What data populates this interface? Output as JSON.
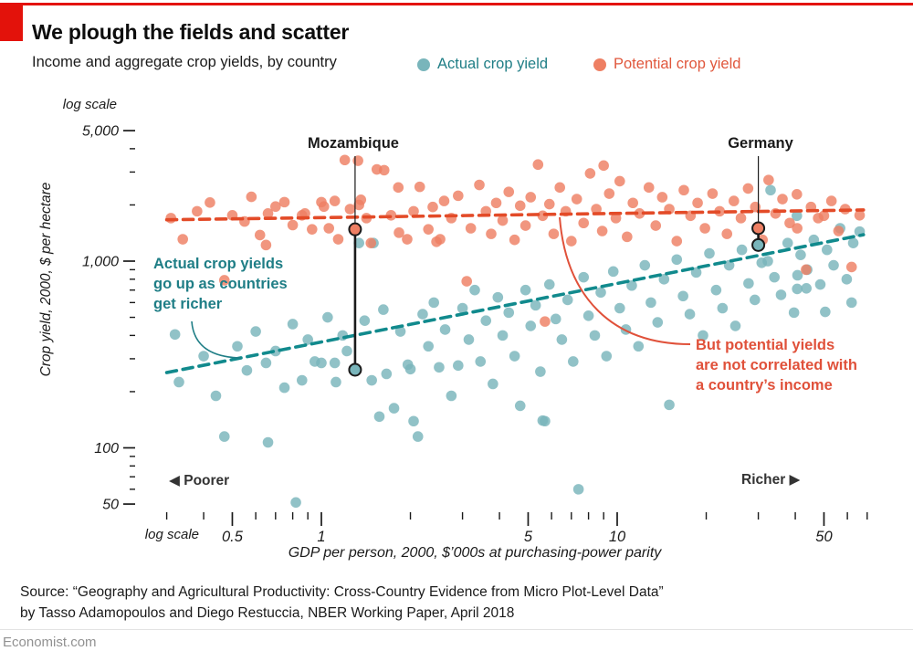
{
  "header": {
    "title": "We plough the fields and scatter",
    "subtitle": "Income and aggregate crop yields, by country"
  },
  "legend": {
    "items": [
      {
        "label": "Actual crop yield",
        "color": "#79b5bb",
        "text_color": "#1f7e86"
      },
      {
        "label": "Potential crop yield",
        "color": "#ee7f63",
        "text_color": "#e0573c"
      }
    ]
  },
  "source": {
    "line1": "Source: “Geography and Agricultural Productivity: Cross-Country Evidence from Micro Plot-Level Data”",
    "line2": "by Tasso Adamopoulos and Diego Restuccia, NBER Working Paper, April 2018"
  },
  "footer": {
    "brand": "Economist.com"
  },
  "brand_color": "#e3120b",
  "chart_data": {
    "type": "scatter",
    "title": "We plough the fields and scatter",
    "subtitle": "Income and aggregate crop yields, by country",
    "xlabel": "GDP per person, 2000, $’000s at purchasing-power parity",
    "ylabel": "Crop yield, 2000, $ per hectare",
    "x_scale": "log",
    "y_scale": "log",
    "xlim": [
      0.28,
      75
    ],
    "ylim": [
      45,
      5500
    ],
    "log_scale_label": "log scale",
    "direction_labels": {
      "left": "◀ Poorer",
      "right": "Richer ▶"
    },
    "x_ticks": [
      {
        "v": 0.5,
        "label": "0.5"
      },
      {
        "v": 1,
        "label": "1"
      },
      {
        "v": 5,
        "label": "5"
      },
      {
        "v": 10,
        "label": "10"
      },
      {
        "v": 50,
        "label": "50"
      }
    ],
    "x_minor_ticks": [
      0.3,
      0.4,
      0.6,
      0.7,
      0.8,
      0.9,
      2,
      3,
      4,
      6,
      7,
      8,
      9,
      20,
      30,
      40,
      60,
      70
    ],
    "y_ticks": [
      {
        "v": 5000,
        "label": "5,000"
      },
      {
        "v": 1000,
        "label": "1,000"
      },
      {
        "v": 100,
        "label": "100"
      },
      {
        "v": 50,
        "label": "50"
      }
    ],
    "y_minor_ticks": [
      4000,
      3000,
      2000,
      900,
      800,
      700,
      600,
      500,
      400,
      300,
      200,
      90,
      80,
      70,
      60
    ],
    "series": [
      {
        "name": "Actual crop yield",
        "color": "#79b5bb",
        "points": [
          [
            0.32,
            405
          ],
          [
            0.33,
            225
          ],
          [
            0.4,
            310
          ],
          [
            0.44,
            190
          ],
          [
            0.47,
            115
          ],
          [
            0.52,
            350
          ],
          [
            0.56,
            260
          ],
          [
            0.6,
            420
          ],
          [
            0.65,
            285
          ],
          [
            0.66,
            107
          ],
          [
            0.7,
            330
          ],
          [
            0.75,
            210
          ],
          [
            0.8,
            460
          ],
          [
            0.82,
            51
          ],
          [
            0.86,
            230
          ],
          [
            0.9,
            380
          ],
          [
            0.95,
            290
          ],
          [
            1.0,
            285
          ],
          [
            1.05,
            500
          ],
          [
            1.11,
            285
          ],
          [
            1.12,
            225
          ],
          [
            1.18,
            400
          ],
          [
            1.22,
            330
          ],
          [
            1.34,
            1250
          ],
          [
            1.4,
            480
          ],
          [
            1.48,
            230
          ],
          [
            1.5,
            1250
          ],
          [
            1.57,
            147
          ],
          [
            1.62,
            550
          ],
          [
            1.66,
            249
          ],
          [
            1.76,
            163
          ],
          [
            1.85,
            420
          ],
          [
            1.96,
            279
          ],
          [
            2.0,
            264
          ],
          [
            2.05,
            139
          ],
          [
            2.12,
            115
          ],
          [
            2.2,
            520
          ],
          [
            2.3,
            350
          ],
          [
            2.4,
            600
          ],
          [
            2.5,
            270
          ],
          [
            2.62,
            430
          ],
          [
            2.75,
            190
          ],
          [
            2.9,
            276
          ],
          [
            3.0,
            560
          ],
          [
            3.15,
            380
          ],
          [
            3.3,
            700
          ],
          [
            3.45,
            290
          ],
          [
            3.6,
            480
          ],
          [
            3.8,
            220
          ],
          [
            3.95,
            640
          ],
          [
            4.1,
            400
          ],
          [
            4.3,
            530
          ],
          [
            4.5,
            310
          ],
          [
            4.7,
            168
          ],
          [
            4.9,
            700
          ],
          [
            5.1,
            450
          ],
          [
            5.3,
            580
          ],
          [
            5.5,
            256
          ],
          [
            5.6,
            140
          ],
          [
            5.7,
            139
          ],
          [
            5.9,
            750
          ],
          [
            6.2,
            490
          ],
          [
            6.5,
            380
          ],
          [
            6.8,
            620
          ],
          [
            7.1,
            290
          ],
          [
            7.4,
            60
          ],
          [
            7.7,
            820
          ],
          [
            8.0,
            510
          ],
          [
            8.4,
            400
          ],
          [
            8.8,
            680
          ],
          [
            9.2,
            310
          ],
          [
            9.7,
            880
          ],
          [
            10.2,
            560
          ],
          [
            10.7,
            430
          ],
          [
            11.2,
            740
          ],
          [
            11.8,
            350
          ],
          [
            12.4,
            950
          ],
          [
            13.0,
            600
          ],
          [
            13.7,
            470
          ],
          [
            14.4,
            800
          ],
          [
            15.0,
            170
          ],
          [
            15.9,
            1020
          ],
          [
            16.7,
            650
          ],
          [
            17.6,
            520
          ],
          [
            18.5,
            870
          ],
          [
            19.5,
            400
          ],
          [
            20.5,
            1100
          ],
          [
            21.6,
            700
          ],
          [
            22.7,
            560
          ],
          [
            23.9,
            950
          ],
          [
            25.1,
            450
          ],
          [
            26.4,
            1150
          ],
          [
            27.8,
            760
          ],
          [
            29.2,
            620
          ],
          [
            30.8,
            980
          ],
          [
            32.3,
            1000
          ],
          [
            33.0,
            2400
          ],
          [
            34.0,
            820
          ],
          [
            35.8,
            660
          ],
          [
            37.7,
            1250
          ],
          [
            39.6,
            530
          ],
          [
            40.5,
            1750
          ],
          [
            40.6,
            710
          ],
          [
            40.7,
            840
          ],
          [
            41.7,
            1080
          ],
          [
            43.6,
            715
          ],
          [
            43.9,
            900
          ],
          [
            46.2,
            1300
          ],
          [
            48.6,
            750
          ],
          [
            50.5,
            535
          ],
          [
            51.2,
            1150
          ],
          [
            53.9,
            950
          ],
          [
            56.7,
            1500
          ],
          [
            59.7,
            800
          ],
          [
            62.0,
            600
          ],
          [
            62.8,
            1250
          ],
          [
            66.0,
            1440
          ]
        ]
      },
      {
        "name": "Potential crop yield",
        "color": "#ee7f63",
        "points": [
          [
            0.31,
            1700
          ],
          [
            0.34,
            1310
          ],
          [
            0.38,
            1850
          ],
          [
            0.42,
            2060
          ],
          [
            0.47,
            790
          ],
          [
            0.5,
            1760
          ],
          [
            0.55,
            1630
          ],
          [
            0.58,
            2210
          ],
          [
            0.62,
            1380
          ],
          [
            0.65,
            1220
          ],
          [
            0.66,
            1800
          ],
          [
            0.7,
            1960
          ],
          [
            0.75,
            2070
          ],
          [
            0.8,
            1560
          ],
          [
            0.86,
            1760
          ],
          [
            0.88,
            1800
          ],
          [
            0.93,
            1480
          ],
          [
            1.0,
            2070
          ],
          [
            1.02,
            1960
          ],
          [
            1.06,
            1500
          ],
          [
            1.11,
            2100
          ],
          [
            1.14,
            1310
          ],
          [
            1.2,
            3480
          ],
          [
            1.25,
            1900
          ],
          [
            1.33,
            3450
          ],
          [
            1.34,
            2000
          ],
          [
            1.36,
            2130
          ],
          [
            1.42,
            1700
          ],
          [
            1.47,
            1250
          ],
          [
            1.54,
            3100
          ],
          [
            1.63,
            3070
          ],
          [
            1.72,
            1760
          ],
          [
            1.82,
            2480
          ],
          [
            1.83,
            1420
          ],
          [
            1.95,
            1310
          ],
          [
            2.05,
            1850
          ],
          [
            2.15,
            2500
          ],
          [
            2.3,
            1480
          ],
          [
            2.38,
            1950
          ],
          [
            2.45,
            1270
          ],
          [
            2.52,
            1310
          ],
          [
            2.6,
            2100
          ],
          [
            2.75,
            1700
          ],
          [
            2.9,
            2240
          ],
          [
            3.1,
            780
          ],
          [
            3.2,
            1500
          ],
          [
            3.42,
            2560
          ],
          [
            3.6,
            1850
          ],
          [
            3.75,
            1400
          ],
          [
            3.9,
            2050
          ],
          [
            4.1,
            1650
          ],
          [
            4.3,
            2350
          ],
          [
            4.5,
            1300
          ],
          [
            4.7,
            1980
          ],
          [
            4.9,
            1550
          ],
          [
            5.1,
            2200
          ],
          [
            5.4,
            3290
          ],
          [
            5.6,
            1750
          ],
          [
            5.7,
            475
          ],
          [
            5.9,
            2020
          ],
          [
            6.1,
            1400
          ],
          [
            6.4,
            2480
          ],
          [
            6.7,
            1850
          ],
          [
            7.0,
            1280
          ],
          [
            7.3,
            2150
          ],
          [
            7.7,
            1600
          ],
          [
            8.1,
            2950
          ],
          [
            8.5,
            1900
          ],
          [
            8.9,
            1450
          ],
          [
            9.0,
            3250
          ],
          [
            9.4,
            2300
          ],
          [
            9.9,
            1700
          ],
          [
            10.2,
            2680
          ],
          [
            10.8,
            1350
          ],
          [
            11.3,
            2050
          ],
          [
            11.9,
            1800
          ],
          [
            12.8,
            2480
          ],
          [
            13.5,
            1550
          ],
          [
            14.2,
            2200
          ],
          [
            15.0,
            1900
          ],
          [
            15.9,
            1280
          ],
          [
            16.8,
            2400
          ],
          [
            17.7,
            1750
          ],
          [
            18.7,
            2050
          ],
          [
            19.8,
            1500
          ],
          [
            21.0,
            2300
          ],
          [
            22.2,
            1850
          ],
          [
            23.5,
            1400
          ],
          [
            24.8,
            2100
          ],
          [
            26.2,
            1700
          ],
          [
            27.7,
            2450
          ],
          [
            29.3,
            1950
          ],
          [
            31.0,
            1300
          ],
          [
            32.5,
            2720
          ],
          [
            34.3,
            1800
          ],
          [
            36.2,
            2150
          ],
          [
            38.3,
            1600
          ],
          [
            40.5,
            2280
          ],
          [
            40.6,
            1500
          ],
          [
            43.5,
            900
          ],
          [
            45.2,
            1950
          ],
          [
            47.8,
            1700
          ],
          [
            50.0,
            1750
          ],
          [
            53.0,
            2100
          ],
          [
            56.0,
            1450
          ],
          [
            59.0,
            1900
          ],
          [
            62.0,
            930
          ],
          [
            66.0,
            1760
          ]
        ]
      }
    ],
    "trend_lines": [
      {
        "series": "Actual crop yield",
        "color": "#118a8d",
        "from": [
          0.3,
          253
        ],
        "to": [
          68,
          1385
        ]
      },
      {
        "series": "Potential crop yield",
        "color": "#e34b28",
        "from": [
          0.3,
          1665
        ],
        "to": [
          68,
          1880
        ]
      }
    ],
    "highlights": [
      {
        "label": "Mozambique",
        "x": 1.3,
        "potential": 1480,
        "actual": 262
      },
      {
        "label": "Germany",
        "x": 30,
        "potential": 1500,
        "actual": 1220
      }
    ],
    "annotations": [
      {
        "text": "Actual crop yields\ngo up as countries\nget richer",
        "color": "#1f7e86"
      },
      {
        "text": "But potential yields\nare not correlated with\na country’s income",
        "color": "#e0513a"
      }
    ]
  }
}
